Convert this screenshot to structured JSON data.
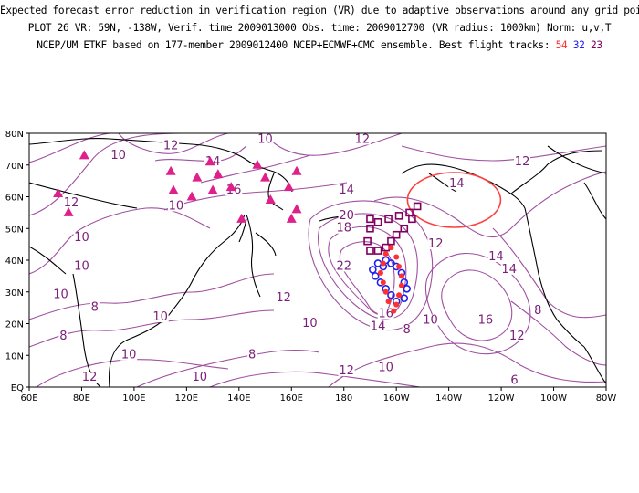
{
  "header": {
    "line1": "Expected forecast error reduction in verification region (VR) due to adaptive observations around any grid point.",
    "line2": "PLOT 26 VR: 59N, -138W, Verif. time 2009013000 Obs. time: 2009012700 (VR radius: 1000km) Norm: u,v,T",
    "line3_prefix": "NCEP/UM ETKF based on 177-member 2009012400 NCEP+ECMWF+CMC ensemble. Best flight tracks:",
    "track_labels": [
      "54",
      "32",
      "23"
    ]
  },
  "map": {
    "lon_range": [
      60,
      280
    ],
    "lat_range": [
      0,
      80
    ],
    "x_ticks": [
      "60E",
      "80E",
      "100E",
      "120E",
      "140E",
      "160E",
      "180",
      "160W",
      "140W",
      "120W",
      "100W",
      "80W"
    ],
    "y_ticks": [
      "EQ",
      "10N",
      "20N",
      "30N",
      "40N",
      "50N",
      "60N",
      "70N",
      "80N"
    ],
    "colors": {
      "contour": "#a050a0",
      "label": "#7a1f7a",
      "coast": "#000000",
      "triangle": "#e0208a",
      "vr_circle": "#ff4040",
      "track_red": "#ff3030",
      "track_blue": "#2020ee",
      "track_purple": "#800060"
    },
    "verification_region": {
      "lat": 59,
      "lon": 222
    },
    "contour_labels": [
      {
        "text": "10",
        "lon": 94,
        "lat": 72
      },
      {
        "text": "12",
        "lon": 114,
        "lat": 75
      },
      {
        "text": "14",
        "lon": 130,
        "lat": 70
      },
      {
        "text": "10",
        "lon": 150,
        "lat": 77
      },
      {
        "text": "12",
        "lon": 76,
        "lat": 57
      },
      {
        "text": "10",
        "lon": 80,
        "lat": 46
      },
      {
        "text": "10",
        "lon": 116,
        "lat": 56
      },
      {
        "text": "16",
        "lon": 138,
        "lat": 61
      },
      {
        "text": "14",
        "lon": 181,
        "lat": 61
      },
      {
        "text": "12",
        "lon": 187,
        "lat": 77
      },
      {
        "text": "14",
        "lon": 223,
        "lat": 63
      },
      {
        "text": "12",
        "lon": 248,
        "lat": 70
      },
      {
        "text": "20",
        "lon": 181,
        "lat": 53
      },
      {
        "text": "18",
        "lon": 180,
        "lat": 49
      },
      {
        "text": "22",
        "lon": 180,
        "lat": 37
      },
      {
        "text": "12",
        "lon": 215,
        "lat": 44
      },
      {
        "text": "14",
        "lon": 238,
        "lat": 40
      },
      {
        "text": "14",
        "lon": 243,
        "lat": 36
      },
      {
        "text": "10",
        "lon": 80,
        "lat": 37
      },
      {
        "text": "10",
        "lon": 72,
        "lat": 28
      },
      {
        "text": "8",
        "lon": 85,
        "lat": 24
      },
      {
        "text": "8",
        "lon": 73,
        "lat": 15
      },
      {
        "text": "10",
        "lon": 110,
        "lat": 21
      },
      {
        "text": "10",
        "lon": 98,
        "lat": 9
      },
      {
        "text": "12",
        "lon": 83,
        "lat": 2
      },
      {
        "text": "10",
        "lon": 125,
        "lat": 2
      },
      {
        "text": "8",
        "lon": 145,
        "lat": 9
      },
      {
        "text": "12",
        "lon": 157,
        "lat": 27
      },
      {
        "text": "10",
        "lon": 167,
        "lat": 19
      },
      {
        "text": "12",
        "lon": 181,
        "lat": 4
      },
      {
        "text": "10",
        "lon": 196,
        "lat": 5
      },
      {
        "text": "8",
        "lon": 204,
        "lat": 17
      },
      {
        "text": "10",
        "lon": 213,
        "lat": 20
      },
      {
        "text": "16",
        "lon": 196,
        "lat": 22
      },
      {
        "text": "14",
        "lon": 193,
        "lat": 18
      },
      {
        "text": "16",
        "lon": 234,
        "lat": 20
      },
      {
        "text": "12",
        "lon": 246,
        "lat": 15
      },
      {
        "text": "8",
        "lon": 254,
        "lat": 23
      },
      {
        "text": "6",
        "lon": 245,
        "lat": 1
      }
    ],
    "triangles": [
      [
        71,
        61
      ],
      [
        75,
        55
      ],
      [
        81,
        73
      ],
      [
        114,
        68
      ],
      [
        115,
        62
      ],
      [
        122,
        60
      ],
      [
        124,
        66
      ],
      [
        129,
        71
      ],
      [
        132,
        67
      ],
      [
        130,
        62
      ],
      [
        137,
        63
      ],
      [
        141,
        53
      ],
      [
        147,
        70
      ],
      [
        150,
        66
      ],
      [
        152,
        59
      ],
      [
        159,
        63
      ],
      [
        162,
        68
      ],
      [
        162,
        56
      ],
      [
        160,
        53
      ]
    ],
    "tracks": {
      "purple": [
        [
          193,
          52
        ],
        [
          197,
          53
        ],
        [
          201,
          54
        ],
        [
          205,
          55
        ],
        [
          208,
          57
        ],
        [
          206,
          53
        ],
        [
          203,
          50
        ],
        [
          200,
          48
        ],
        [
          198,
          46
        ],
        [
          196,
          44
        ],
        [
          193,
          43
        ],
        [
          190,
          43
        ],
        [
          189,
          46
        ],
        [
          190,
          50
        ],
        [
          190,
          53
        ]
      ],
      "red": [
        [
          198,
          44
        ],
        [
          200,
          41
        ],
        [
          201,
          38
        ],
        [
          202,
          35
        ],
        [
          202,
          32
        ],
        [
          201,
          29
        ],
        [
          200,
          26
        ],
        [
          199,
          24
        ],
        [
          197,
          27
        ],
        [
          196,
          30
        ],
        [
          195,
          33
        ],
        [
          194,
          36
        ],
        [
          195,
          39
        ],
        [
          196,
          42
        ]
      ],
      "blue": [
        [
          196,
          40
        ],
        [
          198,
          39
        ],
        [
          200,
          38
        ],
        [
          202,
          36
        ],
        [
          203,
          33
        ],
        [
          204,
          31
        ],
        [
          203,
          28
        ],
        [
          200,
          27
        ],
        [
          198,
          29
        ],
        [
          196,
          31
        ],
        [
          194,
          33
        ],
        [
          192,
          35
        ],
        [
          191,
          37
        ],
        [
          193,
          39
        ],
        [
          195,
          38
        ]
      ]
    }
  }
}
